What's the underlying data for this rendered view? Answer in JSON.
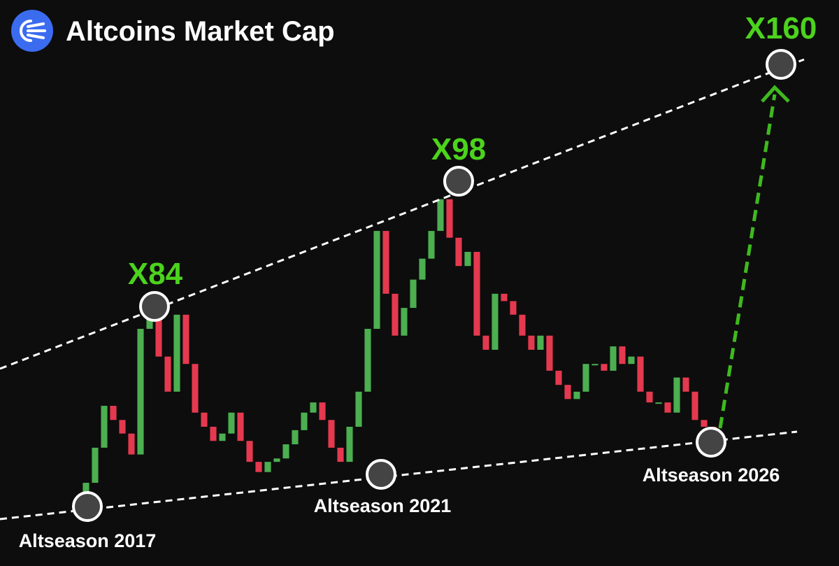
{
  "chart_data": {
    "type": "candlestick",
    "title": "Altcoins Market Cap",
    "annotations": {
      "peaks": [
        "X84",
        "X98",
        "X160"
      ],
      "lows": [
        "Altseason 2017",
        "Altseason 2021",
        "Altseason 2026"
      ]
    },
    "values": [
      10.4,
      14.7,
      20.9,
      28.3,
      25.8,
      23.4,
      19.7,
      41.9,
      45.6,
      37.0,
      30.8,
      44.4,
      35.7,
      27.1,
      24.6,
      22.1,
      23.4,
      27.1,
      22.1,
      18.4,
      16.6,
      18.4,
      19.0,
      21.5,
      24.0,
      27.1,
      28.9,
      25.8,
      20.9,
      18.4,
      24.6,
      30.8,
      41.9,
      59.2,
      48.1,
      40.7,
      45.6,
      50.6,
      54.3,
      59.2,
      64.8,
      58.0,
      53.0,
      55.5,
      40.7,
      38.2,
      48.1,
      46.8,
      44.4,
      40.7,
      38.2,
      40.7,
      34.5,
      32.0,
      29.5,
      30.8,
      35.7,
      35.7,
      34.5,
      38.8,
      35.7,
      37.0,
      30.8,
      28.9,
      28.9,
      27.1,
      33.3,
      30.8,
      25.8,
      24.6,
      22.7
    ],
    "ylim": [
      0,
      100
    ],
    "up_color": "#4caf50",
    "down_color": "#e5394f"
  }
}
